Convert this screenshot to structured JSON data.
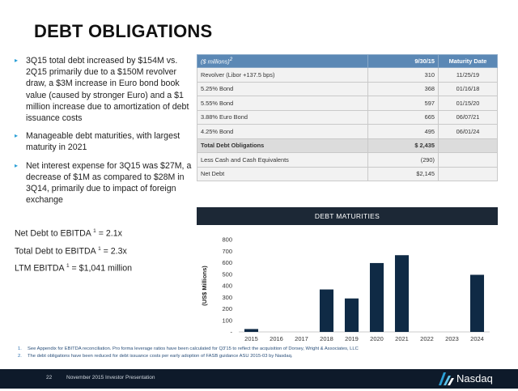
{
  "title": "DEBT OBLIGATIONS",
  "bullets": [
    "3Q15 total debt increased by $154M vs. 2Q15 primarily due to a $150M revolver draw, a $3M increase in Euro bond book value  (caused by stronger Euro) and a $1 million increase due to amortization of debt issuance costs",
    "Manageable debt maturities, with largest maturity in 2021",
    "Net interest expense for 3Q15 was $27M, a decrease of $1M as compared to $28M in 3Q14, primarily due to impact of foreign exchange"
  ],
  "metrics": [
    {
      "label": "Net Debt to EBITDA",
      "sup": "1",
      "value": " = 2.1x"
    },
    {
      "label": "Total Debt to EBITDA",
      "sup": "1",
      "value": " = 2.3x"
    },
    {
      "label": "LTM EBITDA",
      "sup": "1",
      "value": " = $1,041 million"
    }
  ],
  "table": {
    "header": {
      "col1": "($ millions)",
      "col1_sup": "2",
      "col2": "9/30/15",
      "col3": "Maturity Date"
    },
    "rows": [
      {
        "name": "Revolver (Libor +137.5 bps)",
        "amount": "310",
        "maturity": "11/25/19"
      },
      {
        "name": "5.25% Bond",
        "amount": "368",
        "maturity": "01/16/18"
      },
      {
        "name": "5.55% Bond",
        "amount": "597",
        "maturity": "01/15/20"
      },
      {
        "name": "3.88% Euro Bond",
        "amount": "665",
        "maturity": "06/07/21"
      },
      {
        "name": "4.25% Bond",
        "amount": "495",
        "maturity": "06/01/24"
      },
      {
        "name": "Total Debt Obligations",
        "amount": "$ 2,435",
        "maturity": ""
      },
      {
        "name": "Less Cash and Cash Equivalents",
        "amount": "(290)",
        "maturity": ""
      },
      {
        "name": "Net Debt",
        "amount": "$2,145",
        "maturity": ""
      }
    ]
  },
  "chart_data": {
    "type": "bar",
    "title": "DEBT MATURITIES",
    "xlabel": "",
    "ylabel": "(US$ Millions)",
    "categories": [
      "2015",
      "2016",
      "2017",
      "2018",
      "2019",
      "2020",
      "2021",
      "2022",
      "2023",
      "2024"
    ],
    "values": [
      25,
      0,
      0,
      368,
      290,
      597,
      665,
      0,
      0,
      495
    ],
    "ylim": [
      0,
      800
    ],
    "yticks": [
      "-",
      "100",
      "200",
      "300",
      "400",
      "500",
      "600",
      "700",
      "800"
    ],
    "bar_color": "#0f2a45",
    "grid": false
  },
  "footnotes": [
    {
      "num": "1.",
      "text": "See Appendix for EBITDA reconciliation. Pro forma leverage ratios have been calculated for Q3'15 to reflect the acquisition of Dorsey, Wright & Associates, LLC"
    },
    {
      "num": "2.",
      "text": "The debt obligations have been reduced for debt issuance costs per early adoption of FASB guidance ASU 2015-03 by Nasdaq."
    }
  ],
  "footer": {
    "page": "22",
    "presentation": "November 2015 Investor Presentation",
    "logo": "Nasdaq",
    "logo_icon": "nasdaq-logo-icon"
  }
}
